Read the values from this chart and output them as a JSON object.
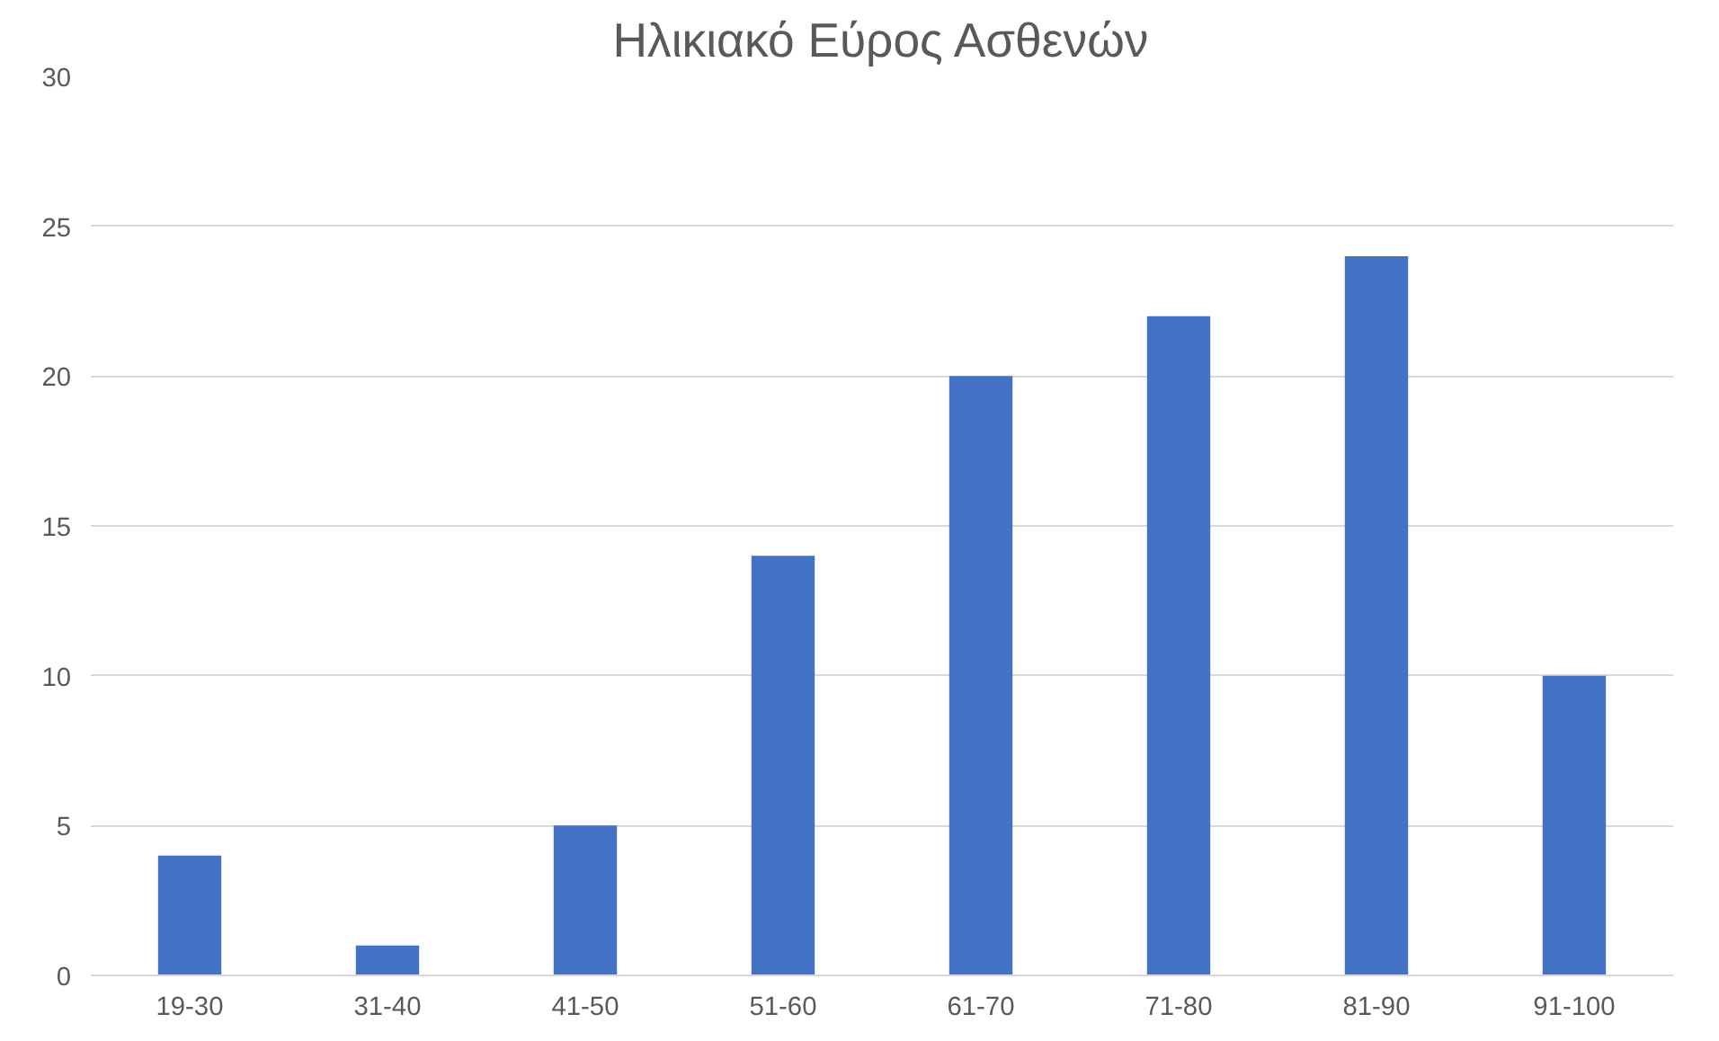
{
  "chart_data": {
    "type": "bar",
    "title": "Ηλικιακό Εύρος Ασθενών",
    "categories": [
      "19-30",
      "31-40",
      "41-50",
      "51-60",
      "61-70",
      "71-80",
      "81-90",
      "91-100"
    ],
    "values": [
      4,
      1,
      5,
      14,
      20,
      22,
      24,
      10
    ],
    "color": "#4472c4",
    "ylim": [
      0,
      30
    ],
    "yticks": [
      0,
      5,
      10,
      15,
      20,
      25,
      30
    ],
    "grid": "y"
  }
}
